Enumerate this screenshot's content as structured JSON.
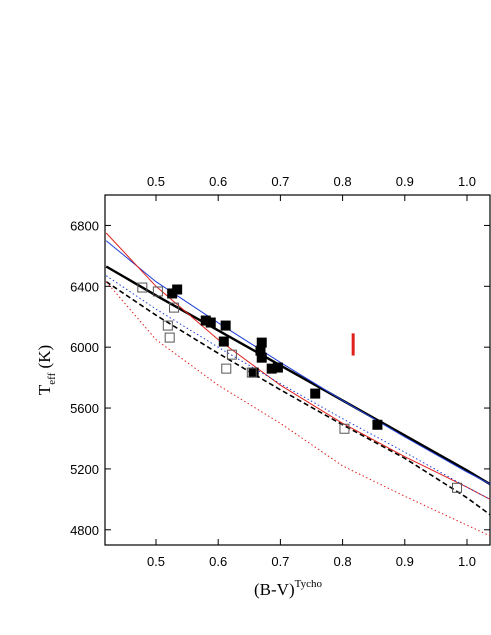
{
  "chart_data": {
    "type": "scatter",
    "xlabel": {
      "main": "(B-V)",
      "sup": "Tycho"
    },
    "ylabel": {
      "main": "T",
      "sub": "eff",
      "rest": " (K)"
    },
    "xlim": [
      0.418,
      1.037
    ],
    "ylim": [
      4700,
      7000
    ],
    "xticks": [
      0.5,
      0.6,
      0.7,
      0.8,
      0.9,
      {
        "value": 1.0,
        "label": "1.0"
      }
    ],
    "yticks": [
      4800,
      5200,
      5600,
      6000,
      6400,
      6800
    ],
    "lines": [
      {
        "color": "#000000",
        "dash": "solid",
        "width": 2.4,
        "x": [
          0.42,
          0.5,
          0.6,
          0.7,
          0.8,
          0.9,
          1.0,
          1.037
        ],
        "values": [
          6530,
          6340,
          6110,
          5880,
          5650,
          5420,
          5190,
          5100
        ]
      },
      {
        "color": "#1f3fd6",
        "dash": "solid",
        "width": 1,
        "x": [
          0.42,
          0.5,
          0.6,
          0.7,
          0.8,
          0.9,
          1.0,
          1.037
        ],
        "values": [
          6700,
          6430,
          6160,
          5900,
          5650,
          5410,
          5180,
          5100
        ]
      },
      {
        "color": "#e0201c",
        "dash": "solid",
        "width": 1,
        "x": [
          0.42,
          0.5,
          0.6,
          0.7,
          0.8,
          0.9,
          1.0,
          1.037
        ],
        "values": [
          6750,
          6400,
          6050,
          5750,
          5500,
          5280,
          5080,
          5000
        ]
      },
      {
        "color": "#000000",
        "dash": "dashed",
        "width": 1.6,
        "x": [
          0.42,
          0.5,
          0.6,
          0.7,
          0.8,
          0.9,
          1.0,
          1.037
        ],
        "values": [
          6430,
          6210,
          5960,
          5720,
          5490,
          5270,
          5010,
          4900
        ]
      },
      {
        "color": "#1f3fd6",
        "dash": "dotted",
        "width": 1,
        "x": [
          0.42,
          0.5,
          0.6,
          0.7,
          0.8,
          0.9,
          1.0,
          1.037
        ],
        "values": [
          6470,
          6250,
          6000,
          5760,
          5530,
          5310,
          5080,
          5000
        ]
      },
      {
        "color": "#e0201c",
        "dash": "dotted",
        "width": 1,
        "x": [
          0.42,
          0.5,
          0.6,
          0.7,
          0.8,
          0.9,
          1.0,
          1.037
        ],
        "values": [
          6430,
          6050,
          5750,
          5500,
          5220,
          5020,
          4830,
          4760
        ]
      }
    ],
    "points": [
      {
        "fill": "#000000",
        "stroke": "#000000",
        "x": [
          0.526,
          0.534,
          0.58,
          0.588,
          0.612,
          0.609,
          0.67,
          0.668,
          0.67,
          0.686,
          0.696,
          0.657,
          0.756,
          0.856
        ],
        "values": [
          6353,
          6379,
          6175,
          6162,
          6142,
          6037,
          6030,
          5977,
          5931,
          5859,
          5866,
          5833,
          5695,
          5490
        ]
      },
      {
        "fill": "none",
        "stroke": "#555555",
        "x": [
          0.478,
          0.503,
          0.529,
          0.519,
          0.522,
          0.622,
          0.613,
          0.654,
          0.803,
          0.984
        ],
        "values": [
          6392,
          6366,
          6260,
          6142,
          6063,
          5951,
          5859,
          5833,
          5464,
          5076
        ]
      }
    ],
    "error_bar": {
      "x": 0.817,
      "y": 6018,
      "error": 73,
      "color": "#e0201c"
    }
  }
}
